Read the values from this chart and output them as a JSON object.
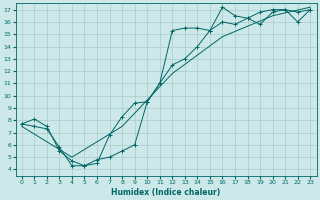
{
  "bg_color": "#cce8e8",
  "grid_color": "#aacccc",
  "line_color": "#006666",
  "xlabel": "Humidex (Indice chaleur)",
  "xlim": [
    -0.5,
    23.5
  ],
  "ylim": [
    3.5,
    17.5
  ],
  "xticks": [
    0,
    1,
    2,
    3,
    4,
    5,
    6,
    7,
    8,
    9,
    10,
    11,
    12,
    13,
    14,
    15,
    16,
    17,
    18,
    19,
    20,
    21,
    22,
    23
  ],
  "yticks": [
    4,
    5,
    6,
    7,
    8,
    9,
    10,
    11,
    12,
    13,
    14,
    15,
    16,
    17
  ],
  "line1_x": [
    0,
    1,
    2,
    3,
    4,
    5,
    6,
    7,
    8,
    9,
    10,
    11,
    12,
    13,
    14,
    15,
    16,
    17,
    18,
    19,
    20,
    21,
    22,
    23
  ],
  "line1_y": [
    7.7,
    8.1,
    7.5,
    5.5,
    4.7,
    4.3,
    4.8,
    5.0,
    5.5,
    6.0,
    9.5,
    11.0,
    15.3,
    15.5,
    15.5,
    15.3,
    17.2,
    16.5,
    16.3,
    15.8,
    16.8,
    17.0,
    16.0,
    17.0
  ],
  "line2_x": [
    0,
    1,
    2,
    3,
    4,
    5,
    6,
    7,
    8,
    9,
    10,
    11,
    12,
    13,
    14,
    15,
    16,
    17,
    18,
    19,
    20,
    21,
    22,
    23
  ],
  "line2_y": [
    7.7,
    7.5,
    7.3,
    5.8,
    4.3,
    4.3,
    4.5,
    6.8,
    8.3,
    9.4,
    9.5,
    11.0,
    12.5,
    13.0,
    14.0,
    15.3,
    16.0,
    15.8,
    16.3,
    16.8,
    17.0,
    17.0,
    16.8,
    17.0
  ],
  "line3_x": [
    0,
    4,
    8,
    12,
    16,
    20,
    23
  ],
  "line3_y": [
    7.5,
    5.0,
    7.5,
    11.8,
    14.8,
    16.5,
    17.2
  ],
  "marker": "+"
}
